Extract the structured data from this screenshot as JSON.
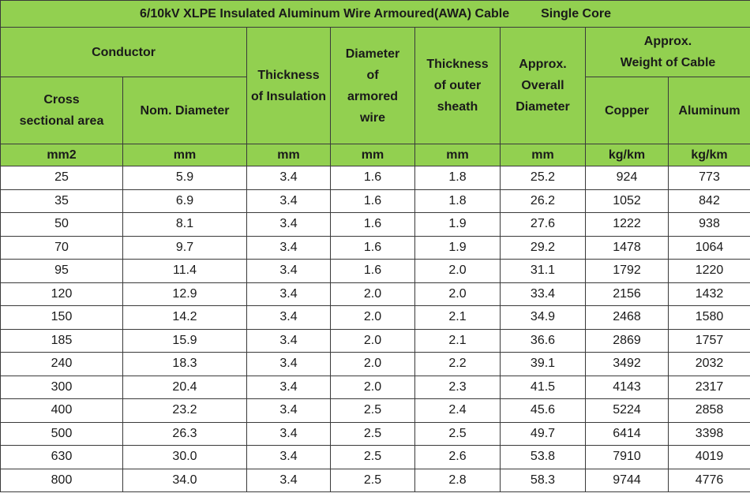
{
  "table": {
    "title": "6/10kV XLPE Insulated Aluminum Wire Armoured(AWA) Cable",
    "subtitle": "Single Core",
    "header": {
      "conductor": "Conductor",
      "cross_line1": "Cross",
      "cross_line2": "sectional area",
      "nom_diameter": "Nom. Diameter",
      "insulation_line1": "Thickness",
      "insulation_line2": "of Insulation",
      "armor_line1": "Diameter",
      "armor_line2": "of",
      "armor_line3": "armored",
      "armor_line4": "wire",
      "sheath_line1": "Thickness",
      "sheath_line2": "of outer",
      "sheath_line3": "sheath",
      "overall_line1": "Approx.",
      "overall_line2": "Overall",
      "overall_line3": "Diameter",
      "weight_line1": "Approx.",
      "weight_line2": "Weight of Cable",
      "copper": "Copper",
      "aluminum": "Aluminum"
    },
    "units": [
      "mm2",
      "mm",
      "mm",
      "mm",
      "mm",
      "mm",
      "kg/km",
      "kg/km"
    ],
    "rows": [
      [
        "25",
        "5.9",
        "3.4",
        "1.6",
        "1.8",
        "25.2",
        "924",
        "773"
      ],
      [
        "35",
        "6.9",
        "3.4",
        "1.6",
        "1.8",
        "26.2",
        "1052",
        "842"
      ],
      [
        "50",
        "8.1",
        "3.4",
        "1.6",
        "1.9",
        "27.6",
        "1222",
        "938"
      ],
      [
        "70",
        "9.7",
        "3.4",
        "1.6",
        "1.9",
        "29.2",
        "1478",
        "1064"
      ],
      [
        "95",
        "11.4",
        "3.4",
        "1.6",
        "2.0",
        "31.1",
        "1792",
        "1220"
      ],
      [
        "120",
        "12.9",
        "3.4",
        "2.0",
        "2.0",
        "33.4",
        "2156",
        "1432"
      ],
      [
        "150",
        "14.2",
        "3.4",
        "2.0",
        "2.1",
        "34.9",
        "2468",
        "1580"
      ],
      [
        "185",
        "15.9",
        "3.4",
        "2.0",
        "2.1",
        "36.6",
        "2869",
        "1757"
      ],
      [
        "240",
        "18.3",
        "3.4",
        "2.0",
        "2.2",
        "39.1",
        "3492",
        "2032"
      ],
      [
        "300",
        "20.4",
        "3.4",
        "2.0",
        "2.3",
        "41.5",
        "4143",
        "2317"
      ],
      [
        "400",
        "23.2",
        "3.4",
        "2.5",
        "2.4",
        "45.6",
        "5224",
        "2858"
      ],
      [
        "500",
        "26.3",
        "3.4",
        "2.5",
        "2.5",
        "49.7",
        "6414",
        "3398"
      ],
      [
        "630",
        "30.0",
        "3.4",
        "2.5",
        "2.6",
        "53.8",
        "7910",
        "4019"
      ],
      [
        "800",
        "34.0",
        "3.4",
        "2.5",
        "2.8",
        "58.3",
        "9744",
        "4776"
      ]
    ],
    "colors": {
      "header_fill": "#92d050",
      "grid": "#3a3a3a",
      "body_fill": "#ffffff"
    }
  }
}
